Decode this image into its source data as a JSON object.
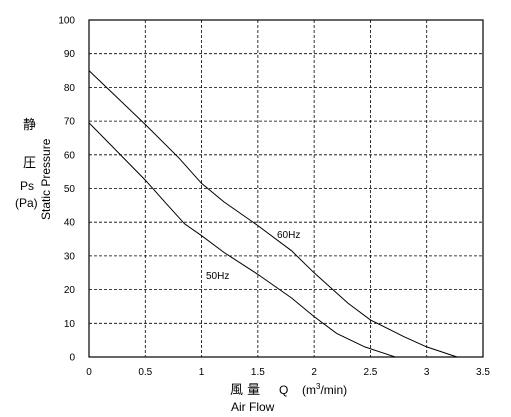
{
  "chart_data": {
    "type": "line",
    "x_ticks": [
      "0",
      "0.5",
      "1",
      "1.5",
      "2",
      "2.5",
      "3",
      "3.5"
    ],
    "y_ticks": [
      "0",
      "10",
      "20",
      "30",
      "40",
      "50",
      "60",
      "70",
      "80",
      "90",
      "100"
    ],
    "xlim": [
      0,
      3.5
    ],
    "ylim": [
      0,
      100
    ],
    "grid": "dashed",
    "x_label": {
      "cjk": "風 量",
      "symbol": "Q",
      "unit_pre": "(m",
      "unit_sup": "3",
      "unit_post": "/min)",
      "english": "Air Flow"
    },
    "y_label": {
      "cjk_1": "静",
      "cjk_2": "圧",
      "symbol": "Ps",
      "unit": "(Pa)",
      "english": "Static Pressure"
    },
    "series": [
      {
        "name": "60Hz",
        "points": [
          [
            0,
            85
          ],
          [
            0.25,
            77
          ],
          [
            0.5,
            69
          ],
          [
            0.8,
            59
          ],
          [
            1.0,
            51.5
          ],
          [
            1.2,
            46
          ],
          [
            1.5,
            39
          ],
          [
            1.8,
            31.5
          ],
          [
            2.0,
            25
          ],
          [
            2.3,
            16
          ],
          [
            2.5,
            11
          ],
          [
            2.8,
            6
          ],
          [
            3.0,
            3
          ],
          [
            3.27,
            0
          ]
        ]
      },
      {
        "name": "50Hz",
        "points": [
          [
            0,
            69.5
          ],
          [
            0.25,
            61
          ],
          [
            0.5,
            52.5
          ],
          [
            0.7,
            45
          ],
          [
            0.85,
            39.5
          ],
          [
            1.0,
            36
          ],
          [
            1.2,
            31
          ],
          [
            1.5,
            24.5
          ],
          [
            1.8,
            17.5
          ],
          [
            2.0,
            12
          ],
          [
            2.2,
            7
          ],
          [
            2.45,
            3
          ],
          [
            2.72,
            0
          ]
        ]
      }
    ]
  }
}
